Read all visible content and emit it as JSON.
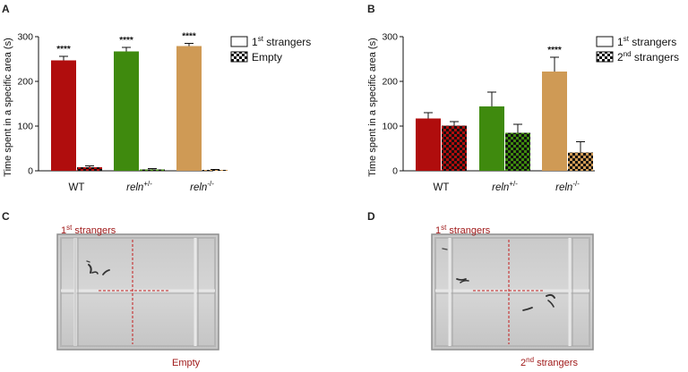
{
  "panels": {
    "a": "A",
    "b": "B",
    "c": "C",
    "d": "D"
  },
  "chart_data": [
    {
      "type": "bar",
      "panel": "A",
      "ylabel": "Time spent in a specific area (s)",
      "ylim": [
        0,
        300
      ],
      "yticks": [
        0,
        100,
        200,
        300
      ],
      "groups": [
        {
          "label_main": "WT",
          "label_sup": ""
        },
        {
          "label_main": "reln",
          "label_sup": "+/-"
        },
        {
          "label_main": "reln",
          "label_sup": "-/-"
        }
      ],
      "series": [
        {
          "name_main": "1",
          "name_sup": "st",
          "name_rest": " strangers",
          "values": [
            247,
            267,
            279
          ],
          "errors": [
            9,
            9,
            6
          ],
          "colors": [
            "#b00d0d",
            "#3f8a0e",
            "#cf9a55"
          ],
          "pattern": "solid"
        },
        {
          "name_main": "Empty",
          "name_sup": "",
          "name_rest": "",
          "values": [
            8,
            3,
            2
          ],
          "errors": [
            3,
            2,
            1
          ],
          "colors": [
            "#b00d0d",
            "#3f8a0e",
            "#cf9a55"
          ],
          "pattern": "checker"
        }
      ],
      "annotations": [
        "****",
        "****",
        "****"
      ]
    },
    {
      "type": "bar",
      "panel": "B",
      "ylabel": "Time spent in a specific area (s)",
      "ylim": [
        0,
        300
      ],
      "yticks": [
        0,
        100,
        200,
        300
      ],
      "groups": [
        {
          "label_main": "WT",
          "label_sup": ""
        },
        {
          "label_main": "reln",
          "label_sup": "+/-"
        },
        {
          "label_main": "reln",
          "label_sup": "-/-"
        }
      ],
      "series": [
        {
          "name_main": "1",
          "name_sup": "st",
          "name_rest": " strangers",
          "values": [
            117,
            144,
            222
          ],
          "errors": [
            13,
            32,
            32
          ],
          "colors": [
            "#b00d0d",
            "#3f8a0e",
            "#cf9a55"
          ],
          "pattern": "solid"
        },
        {
          "name_main": "2",
          "name_sup": "nd",
          "name_rest": " strangers",
          "values": [
            101,
            85,
            41
          ],
          "errors": [
            9,
            19,
            24
          ],
          "colors": [
            "#b00d0d",
            "#3f8a0e",
            "#cf9a55"
          ],
          "pattern": "checker"
        }
      ],
      "annotations": [
        "",
        "",
        "****"
      ]
    }
  ],
  "photos": {
    "c": {
      "top_main": "1",
      "top_sup": "st",
      "top_rest": " strangers",
      "bottom_main": "Empty",
      "bottom_sup": "",
      "bottom_rest": ""
    },
    "d": {
      "top_main": "1",
      "top_sup": "st",
      "top_rest": " strangers",
      "bottom_main": "2",
      "bottom_sup": "nd",
      "bottom_rest": " strangers"
    }
  }
}
